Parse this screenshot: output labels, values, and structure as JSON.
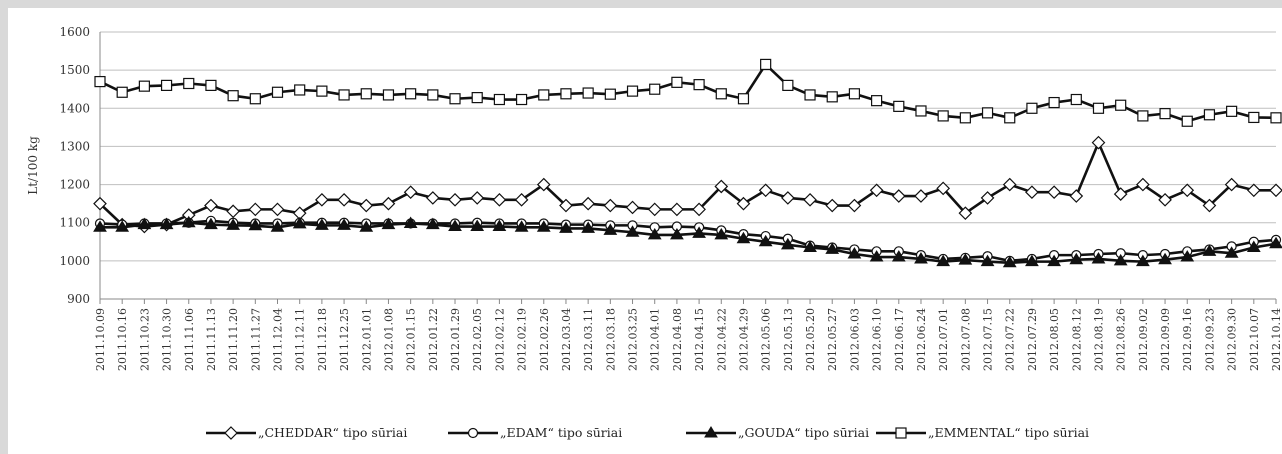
{
  "chart_data": {
    "type": "line",
    "ylabel": "Lt/100 kg",
    "xlabel": "",
    "title": "",
    "ylim": [
      900,
      1600
    ],
    "yticks": [
      900,
      1000,
      1100,
      1200,
      1300,
      1400,
      1500,
      1600
    ],
    "grid": "horizontal",
    "legend": "bottom",
    "categories": [
      "2011.10.09",
      "2011.10.16",
      "2011.10.23",
      "2011.10.30",
      "2011.11.06",
      "2011.11.13",
      "2011.11.20",
      "2011.11.27",
      "2011.12.04",
      "2011.12.11",
      "2011.12.18",
      "2011.12.25",
      "2012.01.01",
      "2012.01.08",
      "2012.01.15",
      "2012.01.22",
      "2012.01.29",
      "2012.02.05",
      "2012.02.12",
      "2012.02.19",
      "2012.02.26",
      "2012.03.04",
      "2012.03.11",
      "2012.03.18",
      "2012.03.25",
      "2012.04.01",
      "2012.04.08",
      "2012.04.15",
      "2012.04.22",
      "2012.04.29",
      "2012.05.06",
      "2012.05.13",
      "2012.05.20",
      "2012.05.27",
      "2012.06.03",
      "2012.06.10",
      "2012.06.17",
      "2012.06.24",
      "2012.07.01",
      "2012.07.08",
      "2012.07.15",
      "2012.07.22",
      "2012.07.29",
      "2012.08.05",
      "2012.08.12",
      "2012.08.19",
      "2012.08.26",
      "2012.09.02",
      "2012.09.09",
      "2012.09.16",
      "2012.09.23",
      "2012.09.30",
      "2012.10.07",
      "2012.10.14"
    ],
    "series": [
      {
        "name": "„CHEDDAR“ tipo sūriai",
        "marker": "diamond-open",
        "values": [
          1150,
          1095,
          1090,
          1095,
          1120,
          1145,
          1130,
          1135,
          1135,
          1125,
          1160,
          1160,
          1145,
          1150,
          1180,
          1165,
          1160,
          1165,
          1160,
          1160,
          1200,
          1145,
          1150,
          1145,
          1140,
          1135,
          1135,
          1135,
          1195,
          1150,
          1185,
          1165,
          1160,
          1145,
          1145,
          1185,
          1170,
          1170,
          1190,
          1125,
          1165,
          1200,
          1180,
          1180,
          1170,
          1310,
          1175,
          1200,
          1160,
          1185,
          1145,
          1200,
          1185,
          1185
        ]
      },
      {
        "name": "„EDAM“ tipo sūriai",
        "marker": "circle-open",
        "values": [
          1098,
          1095,
          1098,
          1098,
          1100,
          1105,
          1100,
          1098,
          1098,
          1100,
          1100,
          1100,
          1098,
          1098,
          1098,
          1098,
          1098,
          1100,
          1098,
          1098,
          1098,
          1095,
          1095,
          1093,
          1093,
          1088,
          1090,
          1088,
          1080,
          1070,
          1065,
          1058,
          1040,
          1035,
          1030,
          1025,
          1025,
          1015,
          1005,
          1008,
          1012,
          1000,
          1005,
          1015,
          1015,
          1018,
          1020,
          1015,
          1018,
          1025,
          1030,
          1038,
          1050,
          1055
        ]
      },
      {
        "name": "„GOUDA“ tipo sūriai",
        "marker": "triangle-filled",
        "values": [
          1088,
          1088,
          1095,
          1095,
          1100,
          1095,
          1093,
          1092,
          1088,
          1097,
          1093,
          1093,
          1088,
          1095,
          1098,
          1095,
          1090,
          1090,
          1090,
          1088,
          1088,
          1085,
          1085,
          1080,
          1075,
          1068,
          1068,
          1072,
          1068,
          1058,
          1050,
          1042,
          1035,
          1030,
          1018,
          1010,
          1010,
          1005,
          998,
          1002,
          998,
          995,
          998,
          998,
          1003,
          1005,
          1000,
          998,
          1003,
          1010,
          1025,
          1020,
          1035,
          1045
        ]
      },
      {
        "name": "„EMMENTAL“ tipo sūriai",
        "marker": "square-open",
        "values": [
          1470,
          1442,
          1458,
          1460,
          1465,
          1460,
          1433,
          1425,
          1442,
          1448,
          1445,
          1435,
          1438,
          1435,
          1438,
          1435,
          1425,
          1428,
          1423,
          1423,
          1435,
          1438,
          1440,
          1437,
          1445,
          1450,
          1468,
          1462,
          1438,
          1425,
          1515,
          1460,
          1435,
          1430,
          1438,
          1420,
          1405,
          1393,
          1380,
          1375,
          1388,
          1375,
          1400,
          1415,
          1423,
          1400,
          1408,
          1380,
          1386,
          1366,
          1383,
          1392,
          1376,
          1375
        ]
      }
    ]
  }
}
